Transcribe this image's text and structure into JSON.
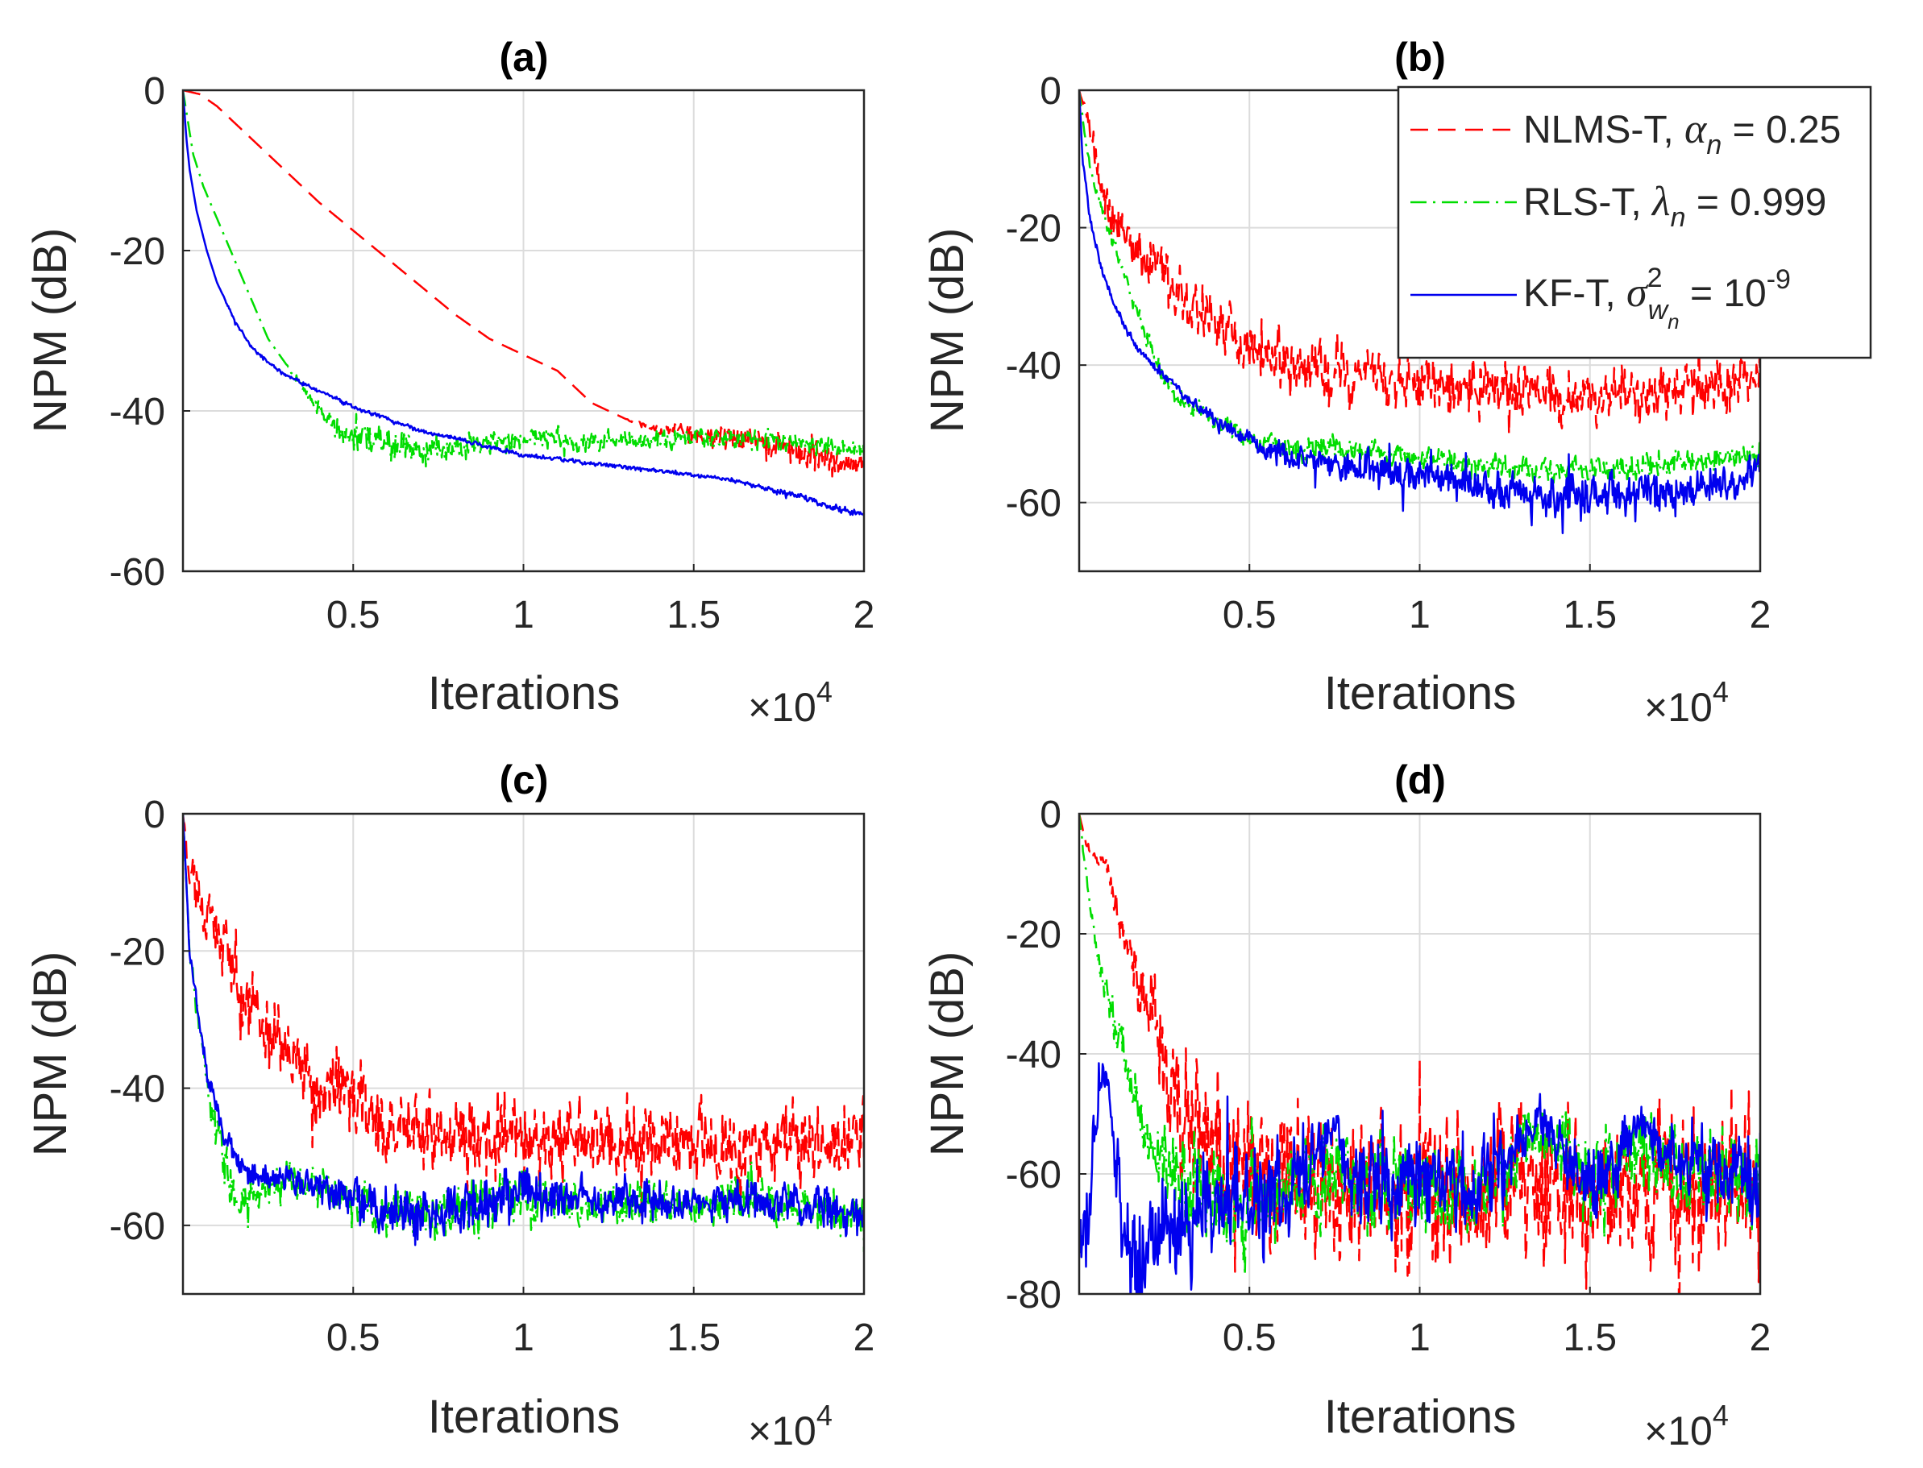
{
  "chart_data": [
    {
      "type": "line",
      "title": "(a)",
      "xlabel": "Iterations",
      "ylabel": "NPM (dB)",
      "x_multiplier": "×10",
      "x_multiplier_exp": "4",
      "xlim": [
        0,
        20000
      ],
      "ylim": [
        -60,
        0
      ],
      "xticks": [
        "0.5",
        "1",
        "1.5",
        "2"
      ],
      "yticks": [
        "0",
        "-20",
        "-40",
        "-60"
      ],
      "grid": true,
      "series": [
        {
          "name": "NLMS-T",
          "color": "#ff0000",
          "style": "dashed",
          "x": [
            0,
            500,
            1000,
            2000,
            3000,
            4000,
            5000,
            6000,
            7000,
            8000,
            9000,
            10000,
            11000,
            12000,
            13000,
            14000,
            15000,
            16000,
            17000,
            18000,
            19000,
            20000
          ],
          "y": [
            0,
            -0.5,
            -2,
            -6,
            -10,
            -14,
            -17.5,
            -21,
            -24.5,
            -28,
            -31,
            -33,
            -35,
            -39,
            -41,
            -42.5,
            -43,
            -43.5,
            -44,
            -45,
            -46,
            -47
          ],
          "noise": [
            0,
            0,
            0,
            0,
            0,
            0,
            0,
            0,
            0,
            0,
            0,
            0,
            0,
            0,
            0,
            0.6,
            1,
            1.3,
            1.4,
            1.5,
            1.5,
            1.5
          ]
        },
        {
          "name": "RLS-T",
          "color": "#00dd00",
          "style": "dashdot",
          "x": [
            0,
            300,
            600,
            1000,
            1500,
            2000,
            2500,
            3000,
            3500,
            4000,
            4500,
            5000,
            6000,
            7000,
            8000,
            9000,
            10000,
            11000,
            12000,
            13000,
            14000,
            15000,
            16000,
            17000,
            18000,
            19000,
            20000
          ],
          "y": [
            0,
            -8,
            -12,
            -16,
            -21,
            -26,
            -31,
            -34,
            -37,
            -40,
            -42,
            -43,
            -44,
            -45,
            -44.5,
            -44,
            -43.5,
            -43.5,
            -44,
            -43.5,
            -43.5,
            -43.5,
            -43.5,
            -43.5,
            -44,
            -44.5,
            -45
          ],
          "noise": [
            0,
            0,
            0,
            0,
            0,
            0,
            0,
            0,
            0.5,
            1,
            1.3,
            1.5,
            1.5,
            1.5,
            1.5,
            1.2,
            1,
            1,
            1,
            1,
            1,
            1,
            1,
            1,
            1,
            1,
            1
          ]
        },
        {
          "name": "KF-T",
          "color": "#0000ee",
          "style": "solid",
          "x": [
            0,
            100,
            200,
            400,
            700,
            1000,
            1500,
            2000,
            2500,
            3000,
            4000,
            5000,
            6000,
            7000,
            8000,
            9000,
            10000,
            11000,
            12000,
            13000,
            14000,
            15000,
            16000,
            17000,
            18000,
            19000,
            20000
          ],
          "y": [
            0,
            -6,
            -10,
            -15,
            -20,
            -24,
            -28.5,
            -32,
            -34,
            -35.5,
            -37.5,
            -39.5,
            -41,
            -42.5,
            -43.5,
            -44.5,
            -45.5,
            -46,
            -46.5,
            -47,
            -47.5,
            -48,
            -48.5,
            -49.5,
            -50.5,
            -52,
            -53
          ],
          "noise": [
            0,
            0,
            0,
            0,
            0,
            0,
            0.2,
            0.2,
            0.2,
            0.2,
            0.2,
            0.2,
            0.2,
            0.2,
            0.2,
            0.2,
            0.2,
            0.2,
            0.2,
            0.2,
            0.2,
            0.2,
            0.2,
            0.3,
            0.3,
            0.3,
            0.3
          ]
        }
      ]
    },
    {
      "type": "line",
      "title": "(b)",
      "xlabel": "Iterations",
      "ylabel": "NPM (dB)",
      "x_multiplier": "×10",
      "x_multiplier_exp": "4",
      "xlim": [
        0,
        20000
      ],
      "ylim": [
        -70,
        0
      ],
      "xticks": [
        "0.5",
        "1",
        "1.5",
        "2"
      ],
      "yticks": [
        "0",
        "-20",
        "-40",
        "-60"
      ],
      "grid": true,
      "legend": {
        "position": "top-right",
        "entries": [
          {
            "label": "NLMS-T, ",
            "param": "α",
            "sub": "n",
            "sup": "",
            "value": " = 0.25"
          },
          {
            "label": "RLS-T, ",
            "param": "λ",
            "sub": "n",
            "sup": "",
            "value": " = 0.999"
          },
          {
            "label": "KF-T, ",
            "param": "σ",
            "sub": "w",
            "subsub": "n",
            "sup": "2",
            "value": " = 10",
            "value_exp": "-9"
          }
        ]
      },
      "series": [
        {
          "name": "NLMS-T",
          "color": "#ff0000",
          "style": "dashed",
          "x": [
            0,
            200,
            400,
            700,
            1000,
            1500,
            2000,
            3000,
            4000,
            5000,
            6000,
            8000,
            10000,
            12000,
            14000,
            16000,
            18000,
            20000
          ],
          "y": [
            0,
            -3,
            -8,
            -14,
            -18,
            -22,
            -25,
            -30,
            -33,
            -37,
            -39,
            -41,
            -42,
            -43,
            -44,
            -44,
            -43,
            -42
          ],
          "noise": [
            0,
            1,
            2,
            2.5,
            3,
            3,
            3.2,
            3.2,
            3.2,
            3.2,
            3.2,
            3.2,
            3.2,
            3.2,
            3.2,
            3.2,
            3.2,
            3.2
          ]
        },
        {
          "name": "RLS-T",
          "color": "#00dd00",
          "style": "dashdot",
          "x": [
            0,
            200,
            500,
            1000,
            1500,
            2000,
            2500,
            3000,
            4000,
            5000,
            6000,
            8000,
            10000,
            12000,
            14000,
            16000,
            18000,
            20000
          ],
          "y": [
            0,
            -8,
            -15,
            -22,
            -29,
            -36,
            -42,
            -45,
            -48,
            -51,
            -52,
            -52,
            -53,
            -55,
            -55,
            -55,
            -54,
            -53
          ],
          "noise": [
            0,
            0.5,
            0.5,
            0.8,
            1,
            1,
            1,
            1,
            1,
            1.2,
            1.5,
            1.5,
            1.5,
            1.5,
            1.5,
            1.5,
            1.5,
            1.5
          ]
        },
        {
          "name": "KF-T",
          "color": "#0000ee",
          "style": "solid",
          "x": [
            0,
            100,
            300,
            600,
            1000,
            1500,
            2000,
            3000,
            4000,
            5000,
            6000,
            8000,
            10000,
            12000,
            14000,
            16000,
            18000,
            20000
          ],
          "y": [
            0,
            -10,
            -18,
            -25,
            -31,
            -36,
            -39,
            -44,
            -48,
            -51,
            -53,
            -55,
            -56,
            -58,
            -59,
            -59,
            -58,
            -56
          ],
          "noise": [
            0,
            0.5,
            0.5,
            0.5,
            0.5,
            0.5,
            0.6,
            0.6,
            0.8,
            1,
            1.5,
            2,
            2,
            2,
            2.5,
            2.5,
            2,
            2
          ]
        }
      ]
    },
    {
      "type": "line",
      "title": "(c)",
      "xlabel": "Iterations",
      "ylabel": "NPM (dB)",
      "x_multiplier": "×10",
      "x_multiplier_exp": "4",
      "xlim": [
        0,
        20000
      ],
      "ylim": [
        -70,
        0
      ],
      "xticks": [
        "0.5",
        "1",
        "1.5",
        "2"
      ],
      "yticks": [
        "0",
        "-20",
        "-40",
        "-60"
      ],
      "grid": true,
      "series": [
        {
          "name": "NLMS-T",
          "color": "#ff0000",
          "style": "dashed",
          "x": [
            0,
            200,
            500,
            1000,
            1500,
            2000,
            3000,
            4000,
            5000,
            6000,
            8000,
            10000,
            12000,
            14000,
            16000,
            18000,
            20000
          ],
          "y": [
            0,
            -8,
            -12,
            -18,
            -24,
            -28,
            -35,
            -40,
            -43,
            -45,
            -47,
            -47,
            -48,
            -48,
            -48,
            -48,
            -48
          ],
          "noise": [
            0,
            3,
            3,
            4,
            4.5,
            4.5,
            4.5,
            4.5,
            4.5,
            4.5,
            4.5,
            4.5,
            4.5,
            4.5,
            4.5,
            4.5,
            4.5
          ]
        },
        {
          "name": "RLS-T",
          "color": "#00dd00",
          "style": "dashdot",
          "x": [
            0,
            200,
            500,
            800,
            1200,
            1600,
            2000,
            3000,
            4000,
            6000,
            8000,
            10000,
            12000,
            14000,
            16000,
            18000,
            20000
          ],
          "y": [
            0,
            -20,
            -32,
            -42,
            -50,
            -56,
            -56,
            -53,
            -54,
            -58,
            -58,
            -56,
            -57,
            -57,
            -56,
            -57,
            -58
          ],
          "noise": [
            0,
            1,
            1.5,
            2,
            3,
            3,
            2.5,
            2,
            2,
            3,
            3,
            3,
            2.5,
            2.5,
            2.5,
            2.5,
            2.5
          ]
        },
        {
          "name": "KF-T",
          "color": "#0000ee",
          "style": "solid",
          "x": [
            0,
            200,
            500,
            800,
            1200,
            1600,
            2000,
            3000,
            4000,
            6000,
            8000,
            10000,
            12000,
            14000,
            16000,
            18000,
            20000
          ],
          "y": [
            0,
            -20,
            -32,
            -40,
            -47,
            -50,
            -52,
            -53,
            -54,
            -58,
            -58,
            -55,
            -57,
            -57,
            -56,
            -57,
            -58
          ],
          "noise": [
            0,
            1,
            1,
            1.2,
            1.2,
            1.5,
            1.5,
            1.5,
            2,
            3,
            3,
            3,
            2.5,
            2.5,
            2.5,
            2.5,
            2.5
          ]
        }
      ]
    },
    {
      "type": "line",
      "title": "(d)",
      "xlabel": "Iterations",
      "ylabel": "NPM (dB)",
      "x_multiplier": "×10",
      "x_multiplier_exp": "4",
      "xlim": [
        0,
        20000
      ],
      "ylim": [
        -80,
        0
      ],
      "xticks": [
        "0.5",
        "1",
        "1.5",
        "2"
      ],
      "yticks": [
        "0",
        "-20",
        "-40",
        "-60",
        "-80"
      ],
      "grid": true,
      "series": [
        {
          "name": "NLMS-T",
          "color": "#ff0000",
          "style": "dashed",
          "x": [
            0,
            200,
            400,
            800,
            1000,
            1500,
            2000,
            2500,
            3000,
            4000,
            5000,
            6000,
            8000,
            10000,
            12000,
            14000,
            16000,
            18000,
            20000
          ],
          "y": [
            0,
            -5,
            -7,
            -8,
            -14,
            -25,
            -32,
            -40,
            -50,
            -55,
            -58,
            -60,
            -62,
            -63,
            -63,
            -62,
            -62,
            -62,
            -63
          ],
          "noise": [
            0,
            0.5,
            0.5,
            1,
            2,
            3,
            5,
            7,
            9,
            10,
            10,
            10,
            10,
            10,
            10,
            10,
            10,
            10,
            10
          ]
        },
        {
          "name": "RLS-T",
          "color": "#00dd00",
          "style": "dashdot",
          "x": [
            0,
            200,
            500,
            800,
            1200,
            1600,
            2000,
            2500,
            3000,
            4000,
            6000,
            8000,
            10000,
            12000,
            13500,
            15000,
            16500,
            18000,
            20000
          ],
          "y": [
            0,
            -10,
            -22,
            -30,
            -38,
            -45,
            -52,
            -58,
            -62,
            -65,
            -62,
            -60,
            -62,
            -62,
            -52,
            -62,
            -55,
            -60,
            -62
          ],
          "noise": [
            0,
            1,
            1.5,
            2,
            3,
            4,
            5,
            6,
            7,
            7,
            6,
            6,
            6,
            6,
            4,
            6,
            5,
            6,
            6
          ]
        },
        {
          "name": "KF-T",
          "color": "#0000ee",
          "style": "solid",
          "x": [
            0,
            150,
            300,
            500,
            700,
            1000,
            1300,
            1600,
            2000,
            3000,
            4000,
            6000,
            7500,
            8000,
            10000,
            12000,
            13500,
            15000,
            16500,
            18000,
            20000
          ],
          "y": [
            -70,
            -72,
            -65,
            -50,
            -42,
            -55,
            -70,
            -75,
            -72,
            -68,
            -65,
            -62,
            -53,
            -60,
            -62,
            -62,
            -50,
            -62,
            -53,
            -58,
            -62
          ],
          "noise": [
            6,
            6,
            6,
            4,
            3,
            6,
            8,
            8,
            8,
            7,
            7,
            7,
            3,
            6,
            6,
            6,
            3,
            6,
            3,
            5,
            6
          ]
        }
      ]
    }
  ]
}
